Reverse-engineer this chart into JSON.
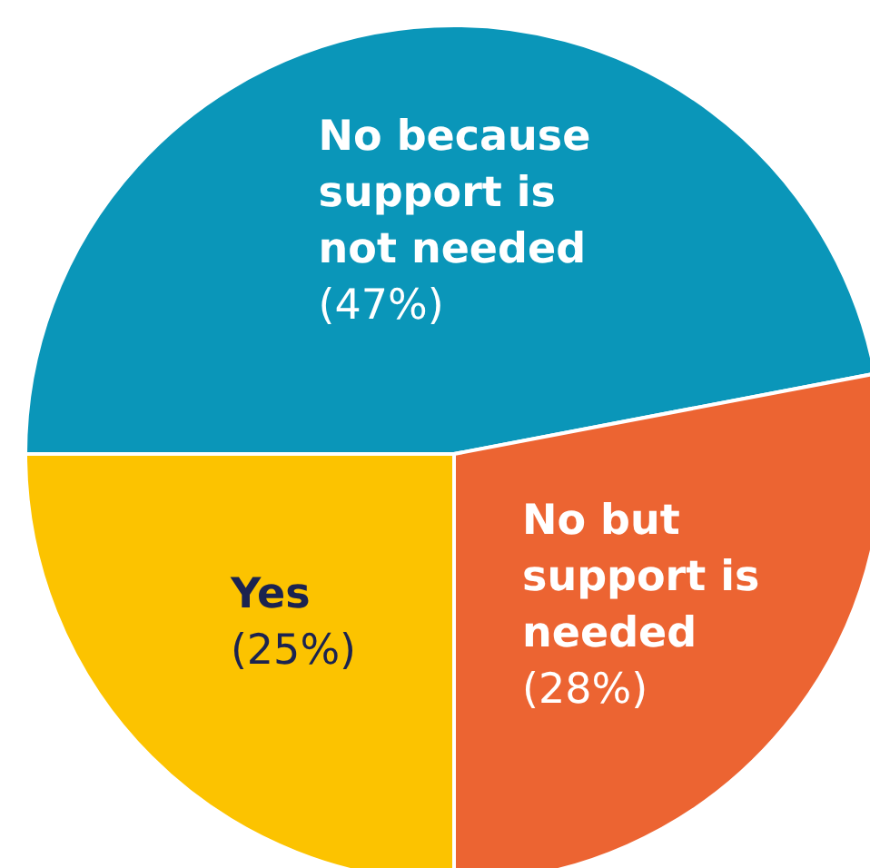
{
  "chart_data": {
    "type": "pie",
    "categories": [
      "No because support is not needed",
      "No but support is needed",
      "Yes"
    ],
    "values": [
      47,
      28,
      25
    ],
    "colors": [
      "#0a96b9",
      "#ec6432",
      "#fcc300"
    ],
    "value_labels": [
      "(47%)",
      "(28%)",
      "(25%)"
    ]
  }
}
